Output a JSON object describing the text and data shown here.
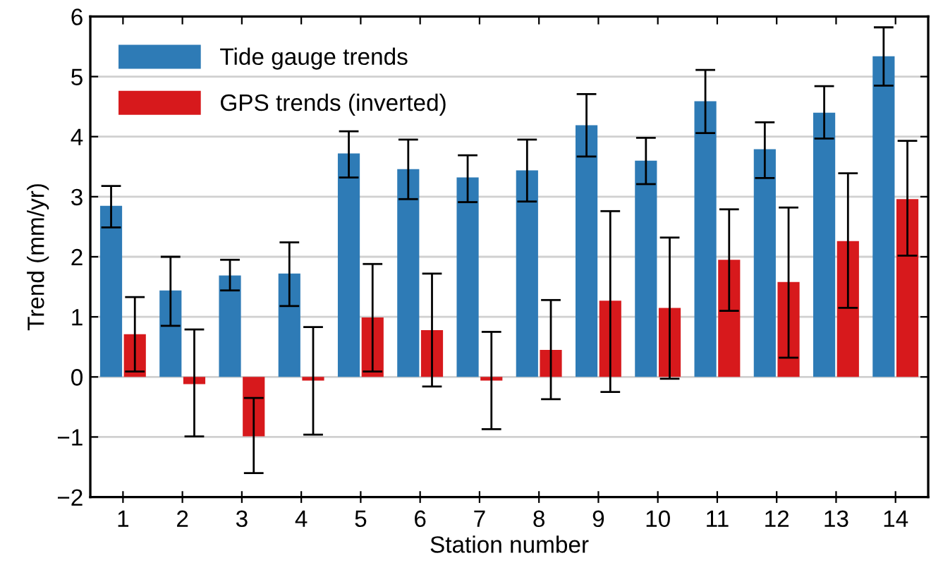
{
  "chart_data": {
    "type": "bar",
    "xlabel": "Station number",
    "ylabel": "Trend (mm/yr)",
    "categories": [
      "1",
      "2",
      "3",
      "4",
      "5",
      "6",
      "7",
      "8",
      "9",
      "10",
      "11",
      "12",
      "13",
      "14"
    ],
    "series": [
      {
        "name": "Tide gauge trends",
        "color": "#2e7bb6",
        "values": [
          2.85,
          1.44,
          1.69,
          1.72,
          3.72,
          3.46,
          3.32,
          3.44,
          4.19,
          3.6,
          4.59,
          3.79,
          4.4,
          5.34
        ],
        "errors": [
          [
            2.49,
            3.18
          ],
          [
            0.85,
            2.0
          ],
          [
            1.44,
            1.95
          ],
          [
            1.18,
            2.24
          ],
          [
            3.32,
            4.09
          ],
          [
            2.96,
            3.95
          ],
          [
            2.91,
            3.69
          ],
          [
            2.92,
            3.95
          ],
          [
            3.67,
            4.71
          ],
          [
            3.21,
            3.98
          ],
          [
            4.06,
            5.11
          ],
          [
            3.31,
            4.24
          ],
          [
            3.97,
            4.84
          ],
          [
            4.85,
            5.82
          ]
        ]
      },
      {
        "name": "GPS trends (inverted)",
        "color": "#d7191c",
        "values": [
          0.71,
          -0.12,
          -0.99,
          -0.06,
          0.99,
          0.78,
          -0.06,
          0.45,
          1.27,
          1.15,
          1.95,
          1.58,
          2.26,
          2.96
        ],
        "errors": [
          [
            0.09,
            1.33
          ],
          [
            -0.99,
            0.79
          ],
          [
            -1.6,
            -0.35
          ],
          [
            -0.96,
            0.83
          ],
          [
            0.09,
            1.88
          ],
          [
            -0.16,
            1.72
          ],
          [
            -0.87,
            0.75
          ],
          [
            -0.37,
            1.28
          ],
          [
            -0.25,
            2.76
          ],
          [
            -0.03,
            2.32
          ],
          [
            1.1,
            2.79
          ],
          [
            0.32,
            2.82
          ],
          [
            1.15,
            3.39
          ],
          [
            2.02,
            3.93
          ]
        ]
      }
    ],
    "ylim": [
      -2,
      6
    ],
    "yticks": [
      {
        "value": -2,
        "label": "−2"
      },
      {
        "value": -1,
        "label": "−1"
      },
      0,
      1,
      2,
      3,
      4,
      5,
      6
    ],
    "grid": "y",
    "legend": "top left"
  }
}
